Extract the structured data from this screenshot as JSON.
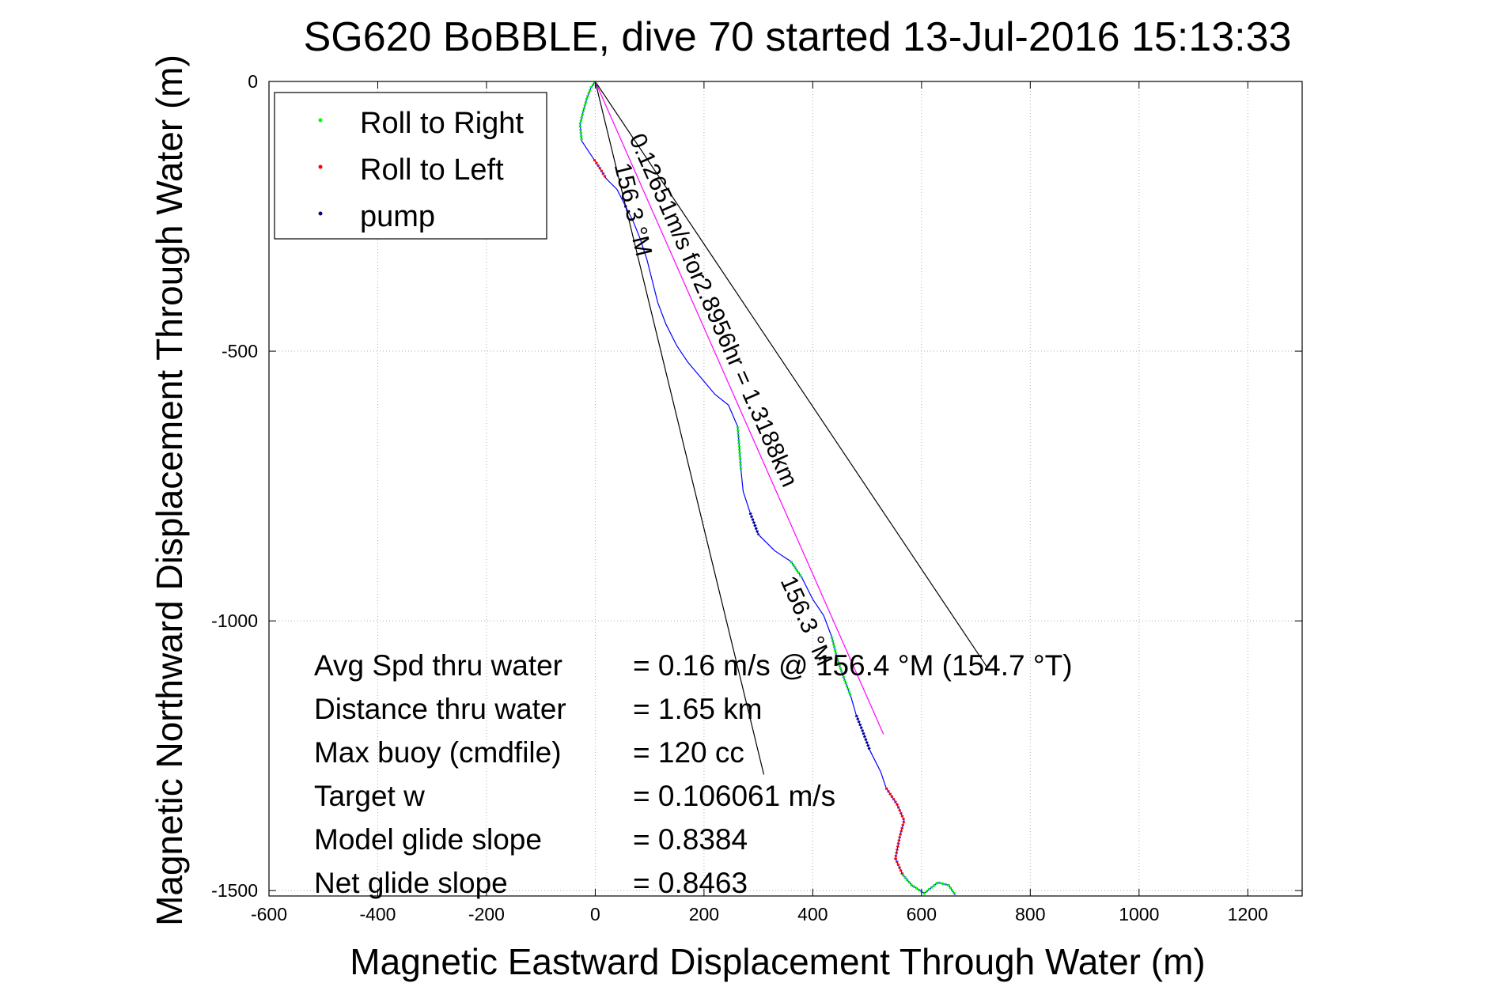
{
  "chart_data": {
    "type": "scatter",
    "title": "SG620 BoBBLE, dive 70 started 13-Jul-2016 15:13:33",
    "xlabel": "Magnetic Eastward Displacement Through Water (m)",
    "ylabel": "Magnetic Northward Displacement Through Water (m)",
    "xlim": [
      -600,
      1300
    ],
    "ylim": [
      -1510,
      0
    ],
    "xticks": [
      -600,
      -400,
      -200,
      0,
      200,
      400,
      600,
      800,
      1000,
      1200
    ],
    "yticks": [
      0,
      -500,
      -1000,
      -1500
    ],
    "xtick_labels": [
      "-600",
      "-400",
      "-200",
      "0",
      "200",
      "400",
      "600",
      "800",
      "1000",
      "1200"
    ],
    "ytick_labels": [
      "0",
      "-500",
      "-1000",
      "-1500"
    ],
    "grid": true,
    "legend": {
      "placement": "top-left",
      "entries": [
        {
          "label": "Roll to Right",
          "color": "#00ff00"
        },
        {
          "label": "Roll to Left",
          "color": "#ff0000"
        },
        {
          "label": "pump",
          "color": "#000080"
        }
      ]
    },
    "track": [
      [
        0,
        0
      ],
      [
        -8,
        -12
      ],
      [
        -15,
        -30
      ],
      [
        -22,
        -55
      ],
      [
        -28,
        -80
      ],
      [
        -25,
        -110
      ],
      [
        -12,
        -130
      ],
      [
        -2,
        -145
      ],
      [
        8,
        -160
      ],
      [
        20,
        -180
      ],
      [
        40,
        -200
      ],
      [
        55,
        -230
      ],
      [
        70,
        -260
      ],
      [
        82,
        -290
      ],
      [
        95,
        -330
      ],
      [
        105,
        -370
      ],
      [
        115,
        -410
      ],
      [
        130,
        -450
      ],
      [
        150,
        -490
      ],
      [
        170,
        -520
      ],
      [
        195,
        -550
      ],
      [
        220,
        -580
      ],
      [
        245,
        -600
      ],
      [
        262,
        -640
      ],
      [
        265,
        -680
      ],
      [
        268,
        -720
      ],
      [
        272,
        -760
      ],
      [
        285,
        -800
      ],
      [
        300,
        -840
      ],
      [
        330,
        -870
      ],
      [
        360,
        -890
      ],
      [
        380,
        -920
      ],
      [
        400,
        -960
      ],
      [
        420,
        -990
      ],
      [
        435,
        -1030
      ],
      [
        445,
        -1070
      ],
      [
        455,
        -1100
      ],
      [
        470,
        -1140
      ],
      [
        480,
        -1175
      ],
      [
        490,
        -1200
      ],
      [
        505,
        -1240
      ],
      [
        525,
        -1280
      ],
      [
        535,
        -1310
      ],
      [
        555,
        -1340
      ],
      [
        568,
        -1370
      ],
      [
        560,
        -1400
      ],
      [
        552,
        -1440
      ],
      [
        565,
        -1470
      ],
      [
        582,
        -1490
      ],
      [
        605,
        -1505
      ],
      [
        630,
        -1485
      ],
      [
        650,
        -1490
      ],
      [
        662,
        -1508
      ]
    ],
    "segments": [
      {
        "type": "Roll to Right",
        "from": [
          0,
          0
        ],
        "to": [
          -25,
          -110
        ]
      },
      {
        "type": "Roll to Left",
        "from": [
          -2,
          -145
        ],
        "to": [
          20,
          -180
        ]
      },
      {
        "type": "Roll to Right",
        "from": [
          262,
          -640
        ],
        "to": [
          270,
          -740
        ]
      },
      {
        "type": "pump",
        "from": [
          285,
          -800
        ],
        "to": [
          300,
          -840
        ]
      },
      {
        "type": "Roll to Right",
        "from": [
          360,
          -890
        ],
        "to": [
          380,
          -920
        ]
      },
      {
        "type": "Roll to Right",
        "from": [
          435,
          -1030
        ],
        "to": [
          470,
          -1140
        ]
      },
      {
        "type": "pump",
        "from": [
          480,
          -1175
        ],
        "to": [
          505,
          -1240
        ]
      },
      {
        "type": "Roll to Left",
        "from": [
          535,
          -1310
        ],
        "to": [
          565,
          -1470
        ]
      },
      {
        "type": "Roll to Right",
        "from": [
          565,
          -1470
        ],
        "to": [
          662,
          -1508
        ]
      }
    ],
    "reference_lines": [
      {
        "label": "156.3 °M",
        "from": [
          0,
          0
        ],
        "to": [
          310,
          -1285
        ],
        "color": "#000000"
      },
      {
        "label": "156.3 °M",
        "from": [
          0,
          0
        ],
        "to": [
          720,
          -1085
        ],
        "color": "#000000"
      },
      {
        "label": "0.12651m/s for2.8956hr = 1.3188km",
        "from": [
          0,
          0
        ],
        "to": [
          530,
          -1210
        ],
        "color": "#ff00ff"
      }
    ],
    "annotations": [
      {
        "text": "0.12651m/s for2.8956hr = 1.3188km",
        "anchor": [
          62,
          -105
        ]
      },
      {
        "text": "156.3 °M",
        "anchor": [
          35,
          -155
        ]
      },
      {
        "text": "156.3 °M",
        "anchor": [
          340,
          -925
        ]
      }
    ],
    "info": [
      {
        "label": "Avg Spd thru water",
        "value": "=  0.16 m/s @ 156.4 °M (154.7 °T)"
      },
      {
        "label": "Distance thru water",
        "value": "=  1.65 km"
      },
      {
        "label": "Max buoy (cmdfile)",
        "value": "= 120 cc"
      },
      {
        "label": "Target w",
        "value": "= 0.106061 m/s"
      },
      {
        "label": "Model glide slope",
        "value": "= 0.8384"
      },
      {
        "label": "Net glide slope",
        "value": "= 0.8463"
      }
    ],
    "colors": {
      "track": "#0000ff",
      "roll_right": "#00ff00",
      "roll_left": "#ff0000",
      "pump": "#000080",
      "heading_line": "#ff00ff"
    }
  }
}
